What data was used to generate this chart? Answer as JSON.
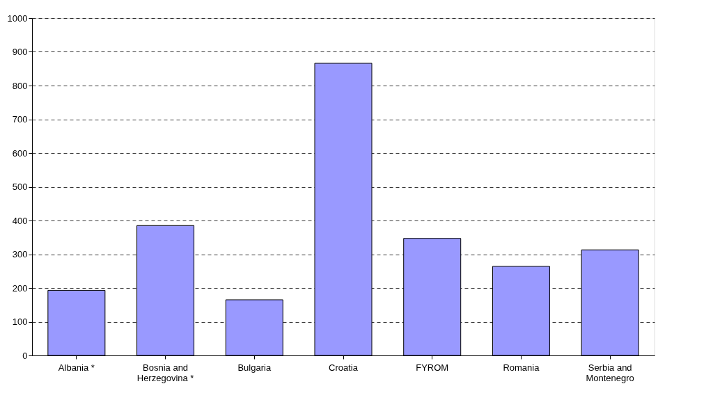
{
  "chart_data": {
    "type": "bar",
    "categories": [
      "Albania *",
      "Bosnia and Herzegovina *",
      "Bulgaria",
      "Croatia",
      "FYROM",
      "Romania",
      "Serbia and Montenegro"
    ],
    "values": [
      193,
      385,
      165,
      866,
      347,
      264,
      313
    ],
    "color": "#9999ff",
    "ylim": [
      0,
      1000
    ],
    "yticks": [
      0,
      100,
      200,
      300,
      400,
      500,
      600,
      700,
      800,
      900,
      1000
    ],
    "grid": "y"
  }
}
